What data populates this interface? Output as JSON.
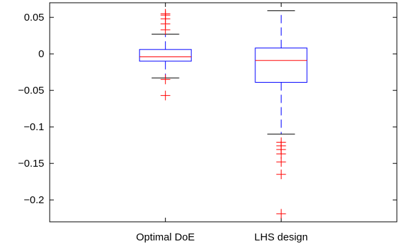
{
  "chart_data": {
    "type": "boxplot",
    "title": "",
    "xlabel": "",
    "ylabel": "",
    "categories": [
      "Optimal DoE",
      "LHS design"
    ],
    "ylim": [
      -0.23,
      0.07
    ],
    "y_ticks": [
      0.05,
      0,
      -0.05,
      -0.1,
      -0.15,
      -0.2
    ],
    "y_tick_labels": [
      "0.05",
      "0",
      "−0.05",
      "−0.1",
      "−0.15",
      "−0.2"
    ],
    "grid": false,
    "legend": "none",
    "colors": {
      "box": "#0000ff",
      "median": "#ff0000",
      "whisker_cap": "#000000",
      "outlier": "#ff0000",
      "axes": "#000000"
    },
    "series": [
      {
        "category": "Optimal DoE",
        "q1": -0.01,
        "median": -0.004,
        "q3": 0.006,
        "whisker_low": -0.033,
        "whisker_high": 0.027,
        "outliers": [
          0.055,
          0.053,
          0.048,
          0.041,
          0.033,
          -0.035,
          -0.057
        ]
      },
      {
        "category": "LHS design",
        "q1": -0.039,
        "median": -0.009,
        "q3": 0.008,
        "whisker_low": -0.11,
        "whisker_high": 0.059,
        "outliers": [
          -0.121,
          -0.126,
          -0.131,
          -0.137,
          -0.148,
          -0.165,
          -0.219
        ]
      }
    ]
  }
}
